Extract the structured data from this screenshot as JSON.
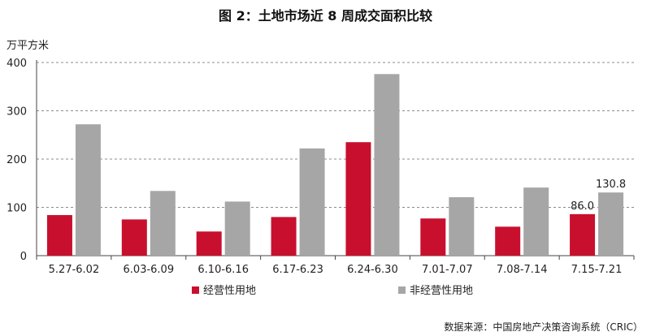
{
  "chart_data": {
    "type": "bar",
    "title": "图 2：土地市场近 8 周成交面积比较",
    "ylabel": "万平方米",
    "xlabel": "",
    "ylim": [
      0,
      400
    ],
    "yticks": [
      0,
      100,
      200,
      300,
      400
    ],
    "grid": true,
    "legend_position": "bottom-left",
    "categories": [
      "5.27-6.02",
      "6.03-6.09",
      "6.10-6.16",
      "6.17-6.23",
      "6.24-6.30",
      "7.01-7.07",
      "7.08-7.14",
      "7.15-7.21"
    ],
    "series": [
      {
        "name": "经营性用地",
        "color": "#c8102e",
        "values": [
          84,
          75,
          50,
          80,
          235,
          77,
          60,
          86.0
        ],
        "data_labels": [
          null,
          null,
          null,
          null,
          null,
          null,
          null,
          "86.0"
        ]
      },
      {
        "name": "非经营性用地",
        "color": "#a6a6a6",
        "values": [
          272,
          134,
          112,
          222,
          376,
          121,
          141,
          130.8
        ],
        "data_labels": [
          null,
          null,
          null,
          null,
          null,
          null,
          null,
          "130.8"
        ]
      }
    ],
    "source": "数据来源：中国房地产决策咨询系统（CRIC）"
  }
}
